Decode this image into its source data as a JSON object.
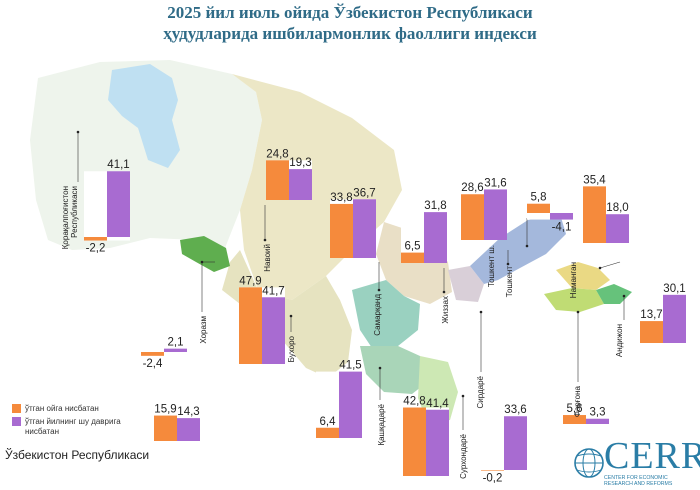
{
  "title_line1": "2025 йил июль ойида Ўзбекистон Республикаси",
  "title_line2": "ҳудудларида ишбилармонлик фаоллиги индекси",
  "country_label": "Ўзбекистон Республикаси",
  "legend": [
    {
      "label": "ўтган ойга нисбатан",
      "color": "#f58a3c"
    },
    {
      "label": "ўтган йилнинг шу даврига нисбатан",
      "color": "#a86bd1"
    }
  ],
  "logo": {
    "text": "CERR",
    "subtitle_line1": "CENTER FOR ECONOMIC",
    "subtitle_line2": "RESEARCH AND REFORMS"
  },
  "chart_data": {
    "type": "bar",
    "title": "2025 йил июль ойида Ўзбекистон Республикаси ҳудудларида ишбилармонлик фаоллиги индекси",
    "series": [
      {
        "name": "ўтган ойга нисбатан",
        "color": "#f58a3c"
      },
      {
        "name": "ўтган йилнинг шу даврига нисбатан",
        "color": "#a86bd1"
      }
    ],
    "regions": [
      {
        "name": "Қорақалпоғистон Республикаси",
        "mom": -2.2,
        "yoy": 41.1,
        "mom_label": "-2,2",
        "yoy_label": "41,1"
      },
      {
        "name": "Навоий",
        "mom": 24.8,
        "yoy": 19.3,
        "mom_label": "24,8",
        "yoy_label": "19,3"
      },
      {
        "name": "Самарқанд",
        "mom": 33.8,
        "yoy": 36.7,
        "mom_label": "33,8",
        "yoy_label": "36,7"
      },
      {
        "name": "Жиззах",
        "mom": 6.5,
        "yoy": 31.8,
        "mom_label": "6,5",
        "yoy_label": "31,8"
      },
      {
        "name": "Тошкент ш.",
        "mom": 28.6,
        "yoy": 31.6,
        "mom_label": "28,6",
        "yoy_label": "31,6"
      },
      {
        "name": "Тошкент",
        "mom": 5.8,
        "yoy": -4.1,
        "mom_label": "5,8",
        "yoy_label": "-4,1"
      },
      {
        "name": "Наманган",
        "mom": 35.4,
        "yoy": 18.0,
        "mom_label": "35,4",
        "yoy_label": "18,0"
      },
      {
        "name": "Андижон",
        "mom": 13.7,
        "yoy": 30.1,
        "mom_label": "13,7",
        "yoy_label": "30,1"
      },
      {
        "name": "Хоразм",
        "mom": -2.4,
        "yoy": 2.1,
        "mom_label": "-2,4",
        "yoy_label": "2,1"
      },
      {
        "name": "Бухоро",
        "mom": 47.9,
        "yoy": 41.7,
        "mom_label": "47,9",
        "yoy_label": "41,7"
      },
      {
        "name": "Қашқадарё",
        "mom": 6.4,
        "yoy": 41.5,
        "mom_label": "6,4",
        "yoy_label": "41,5"
      },
      {
        "name": "Сурхондарё",
        "mom": 42.8,
        "yoy": 41.4,
        "mom_label": "42,8",
        "yoy_label": "41,4"
      },
      {
        "name": "Сирдарё",
        "mom": -0.2,
        "yoy": 33.6,
        "mom_label": "-0,2",
        "yoy_label": "33,6"
      },
      {
        "name": "Фарғона",
        "mom": 5.6,
        "yoy": 3.3,
        "mom_label": "5,6",
        "yoy_label": "3,3"
      },
      {
        "name": "Ўзбекистон Республикаси",
        "mom": 15.9,
        "yoy": 14.3,
        "mom_label": "15,9",
        "yoy_label": "14,3"
      }
    ]
  }
}
